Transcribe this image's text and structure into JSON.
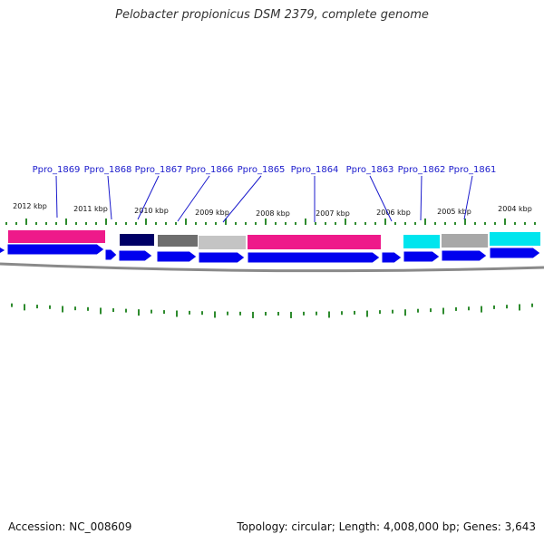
{
  "title": "Pelobacter propionicus DSM 2379, complete genome",
  "footer": {
    "accession": "Accession: NC_008609",
    "summary": "Topology: circular; Length: 4,008,000 bp; Genes: 3,643"
  },
  "colors": {
    "background": "#ffffff",
    "backbone": "#8a8a8a",
    "label_link": "#1a1acc",
    "tick": "#2e8b2e",
    "gene_blue": "#0000ee"
  },
  "kbp_labels": [
    "2012 kbp",
    "2011 kbp",
    "2010 kbp",
    "2009 kbp",
    "2008 kbp",
    "2007 kbp",
    "2006 kbp",
    "2005 kbp",
    "2004 kbp"
  ],
  "gene_labels": [
    "Ppro_1869",
    "Ppro_1868",
    "Ppro_1867",
    "Ppro_1866",
    "Ppro_1865",
    "Ppro_1864",
    "Ppro_1863",
    "Ppro_1862",
    "Ppro_1861"
  ],
  "feature_colors": [
    "#ee1a8a",
    "#000066",
    "#6e6e6e",
    "#c4c4c4",
    "#ee1a8a",
    "#00e5ee",
    "#a8a8a8",
    "#00e5ee"
  ],
  "strand_arrow_count": 11
}
